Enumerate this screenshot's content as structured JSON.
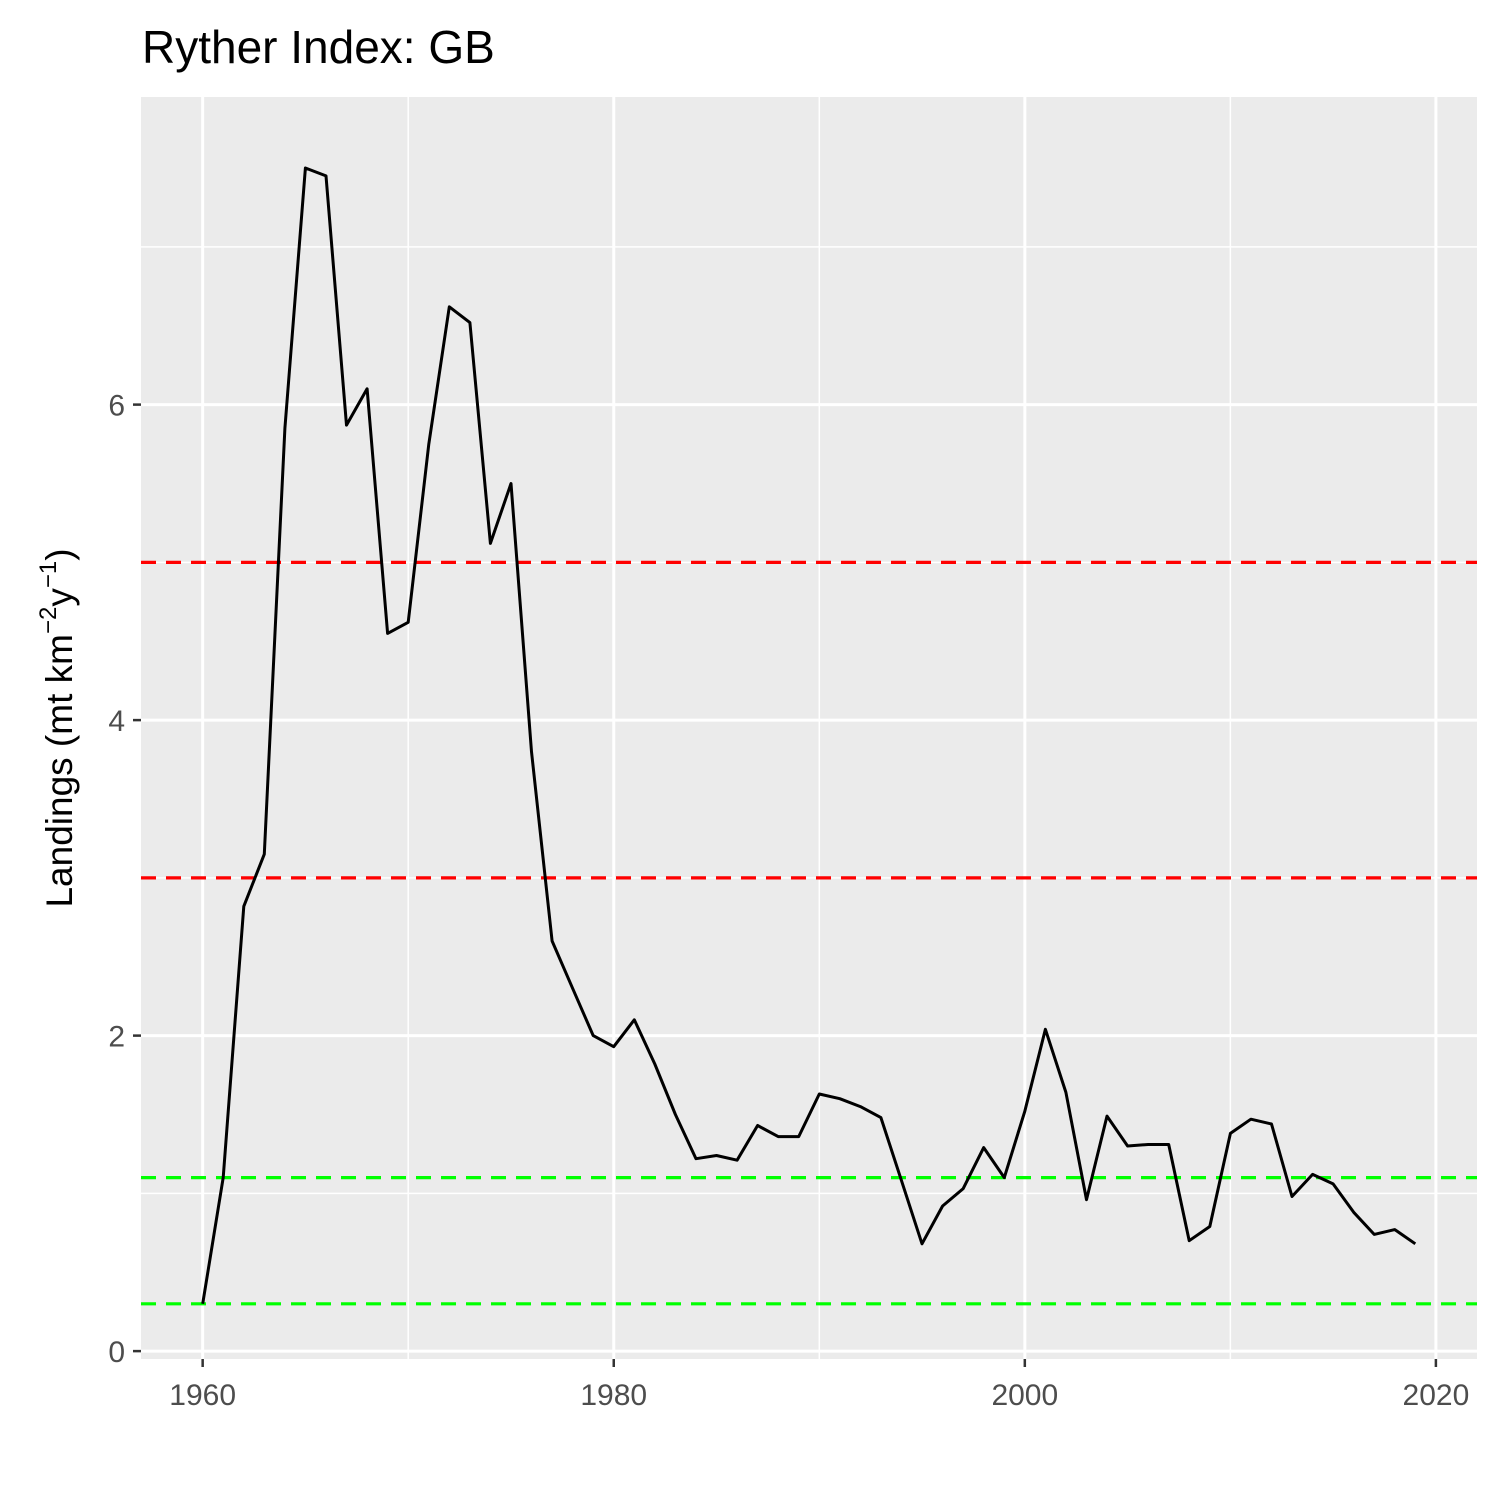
{
  "chart_data": {
    "type": "line",
    "title": "Ryther Index: GB",
    "xlabel": "",
    "ylabel": {
      "prefix": "Landings (mt km",
      "sup1": "−2",
      "mid": "y",
      "sup2": "−1",
      "suffix": ")"
    },
    "xlim": [
      1957,
      2022
    ],
    "ylim": [
      -0.05,
      7.95
    ],
    "x_ticks": [
      1960,
      1980,
      2000,
      2020
    ],
    "x_tick_labels": [
      "1960",
      "1980",
      "2000",
      "2020"
    ],
    "y_ticks": [
      0,
      2,
      4,
      6
    ],
    "y_tick_labels": [
      "0",
      "2",
      "4",
      "6"
    ],
    "grid": true,
    "legend": "none",
    "background": "#ebebeb",
    "line_color": "#000000",
    "reference_lines": [
      {
        "y": 5.0,
        "color": "#ff0000",
        "style": "dashed"
      },
      {
        "y": 3.0,
        "color": "#ff0000",
        "style": "dashed"
      },
      {
        "y": 1.1,
        "color": "#00ff00",
        "style": "dashed"
      },
      {
        "y": 0.3,
        "color": "#00ff00",
        "style": "dashed"
      }
    ],
    "series": [
      {
        "x": [
          1960,
          1961,
          1962,
          1963,
          1964,
          1965,
          1966,
          1967,
          1968,
          1969,
          1970,
          1971,
          1972,
          1973,
          1974,
          1975,
          1976,
          1977,
          1978,
          1979,
          1980,
          1981,
          1982,
          1983,
          1984,
          1985,
          1986,
          1987,
          1988,
          1989,
          1990,
          1991,
          1992,
          1993,
          1994,
          1995,
          1996,
          1997,
          1998,
          1999,
          2000,
          2001,
          2002,
          2003,
          2004,
          2005,
          2006,
          2007,
          2008,
          2009,
          2010,
          2011,
          2012,
          2013,
          2014,
          2015,
          2016,
          2017,
          2018,
          2019
        ],
        "y": [
          0.3,
          1.1,
          2.82,
          3.15,
          5.85,
          7.5,
          7.45,
          5.87,
          6.1,
          4.55,
          4.62,
          5.75,
          6.62,
          6.52,
          5.12,
          5.5,
          3.8,
          2.6,
          2.3,
          2.0,
          1.93,
          2.1,
          1.82,
          1.5,
          1.22,
          1.24,
          1.21,
          1.43,
          1.36,
          1.36,
          1.63,
          1.6,
          1.55,
          1.48,
          1.08,
          0.68,
          0.92,
          1.03,
          1.29,
          1.1,
          1.52,
          2.04,
          1.64,
          0.96,
          1.49,
          1.3,
          1.31,
          1.31,
          0.7,
          0.79,
          1.38,
          1.47,
          1.44,
          0.98,
          1.12,
          1.06,
          0.88,
          0.74,
          0.77,
          0.68
        ]
      }
    ]
  }
}
